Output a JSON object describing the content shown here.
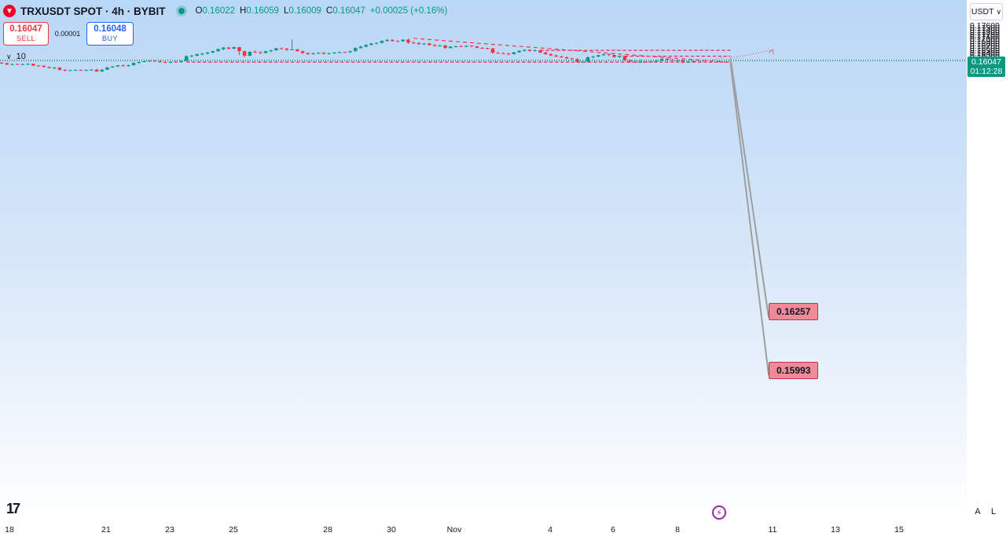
{
  "header": {
    "logo_icon": "tron-logo-icon",
    "symbol_title": "TRXUSDT SPOT · 4h · BYBIT",
    "ohlc": [
      {
        "key": "O",
        "value": "0.16022"
      },
      {
        "key": "H",
        "value": "0.16059"
      },
      {
        "key": "L",
        "value": "0.16009"
      },
      {
        "key": "C",
        "value": "0.16047"
      },
      {
        "key": "",
        "value": "+0.00025 (+0.16%)"
      }
    ]
  },
  "trade": {
    "sell_price": "0.16047",
    "sell_label": "SELL",
    "spread": "0.00001",
    "buy_price": "0.16048",
    "buy_label": "BUY"
  },
  "indicator": {
    "count": "10"
  },
  "price_axis": {
    "currency": "USDT",
    "ticks": [
      "0.17600",
      "0.17500",
      "0.17400",
      "0.17300",
      "0.17200",
      "0.17100",
      "0.17000",
      "0.16900",
      "0.16800",
      "0.16700",
      "0.16600",
      "0.16500",
      "0.16400",
      "0.16300",
      "0.16200",
      "0.16100",
      "0.16000",
      "0.15900",
      "0.15800",
      "0.15700",
      "0.15600",
      "0.15500"
    ],
    "last_price": "0.16047",
    "countdown": "01:12:28"
  },
  "time_axis": {
    "labels": [
      "18",
      "21",
      "23",
      "25",
      "28",
      "30",
      "Nov",
      "4",
      "6",
      "8",
      "11",
      "13",
      "15"
    ]
  },
  "buttons": {
    "auto": "A",
    "log": "L"
  },
  "annotations": {
    "callout_upper": "0.16257",
    "callout_lower": "0.15993"
  },
  "colors": {
    "up": "#089981",
    "down": "#f23645",
    "zone": "#f6b3c6",
    "trendline": "#f23645",
    "bg_top": "#b9d7f6",
    "bg_bottom": "#ffffff"
  },
  "chart_data": {
    "type": "candlestick",
    "symbol": "TRXUSDT",
    "interval": "4h",
    "ylim": [
      0.155,
      0.1765
    ],
    "candles": [
      [
        0.1597,
        0.16,
        0.1592,
        0.1595
      ],
      [
        0.1595,
        0.1597,
        0.1586,
        0.1589
      ],
      [
        0.1589,
        0.1593,
        0.1585,
        0.1591
      ],
      [
        0.1591,
        0.1594,
        0.1587,
        0.1589
      ],
      [
        0.1589,
        0.1593,
        0.1586,
        0.1591
      ],
      [
        0.1591,
        0.1594,
        0.1587,
        0.1592
      ],
      [
        0.1592,
        0.1593,
        0.1582,
        0.1584
      ],
      [
        0.1584,
        0.1587,
        0.1579,
        0.1583
      ],
      [
        0.1583,
        0.1586,
        0.1575,
        0.1578
      ],
      [
        0.1578,
        0.158,
        0.157,
        0.1574
      ],
      [
        0.1574,
        0.1578,
        0.1568,
        0.1575
      ],
      [
        0.1575,
        0.1577,
        0.1562,
        0.1565
      ],
      [
        0.1565,
        0.1569,
        0.1559,
        0.1562
      ],
      [
        0.1562,
        0.1566,
        0.156,
        0.1564
      ],
      [
        0.1564,
        0.1567,
        0.1561,
        0.1565
      ],
      [
        0.1565,
        0.1568,
        0.1561,
        0.1563
      ],
      [
        0.1563,
        0.1567,
        0.156,
        0.1565
      ],
      [
        0.1565,
        0.1569,
        0.1562,
        0.1566
      ],
      [
        0.1566,
        0.157,
        0.1556,
        0.1558
      ],
      [
        0.1558,
        0.1568,
        0.1557,
        0.1566
      ],
      [
        0.1566,
        0.1578,
        0.1565,
        0.1576
      ],
      [
        0.1576,
        0.1582,
        0.1574,
        0.158
      ],
      [
        0.158,
        0.1587,
        0.1578,
        0.1585
      ],
      [
        0.1585,
        0.159,
        0.158,
        0.1583
      ],
      [
        0.1583,
        0.1588,
        0.1578,
        0.1586
      ],
      [
        0.1586,
        0.1598,
        0.1584,
        0.1596
      ],
      [
        0.1596,
        0.1603,
        0.1592,
        0.16
      ],
      [
        0.16,
        0.1606,
        0.1598,
        0.1604
      ],
      [
        0.1604,
        0.1608,
        0.16,
        0.1606
      ],
      [
        0.1606,
        0.1609,
        0.1601,
        0.1603
      ],
      [
        0.1603,
        0.1607,
        0.1596,
        0.16
      ],
      [
        0.16,
        0.1604,
        0.1595,
        0.1597
      ],
      [
        0.1597,
        0.1602,
        0.1594,
        0.1601
      ],
      [
        0.1601,
        0.1606,
        0.1598,
        0.1599
      ],
      [
        0.1599,
        0.1606,
        0.1597,
        0.1605
      ],
      [
        0.1605,
        0.1629,
        0.1603,
        0.1626
      ],
      [
        0.1626,
        0.1632,
        0.162,
        0.1628
      ],
      [
        0.1628,
        0.1637,
        0.1624,
        0.1635
      ],
      [
        0.1635,
        0.1641,
        0.163,
        0.1637
      ],
      [
        0.1637,
        0.1645,
        0.1633,
        0.1642
      ],
      [
        0.1642,
        0.1651,
        0.1638,
        0.1648
      ],
      [
        0.1648,
        0.166,
        0.1645,
        0.1657
      ],
      [
        0.1657,
        0.1666,
        0.1652,
        0.1664
      ],
      [
        0.1664,
        0.1668,
        0.1655,
        0.1659
      ],
      [
        0.1659,
        0.1669,
        0.1656,
        0.1666
      ],
      [
        0.1666,
        0.1667,
        0.163,
        0.1648
      ],
      [
        0.1648,
        0.165,
        0.162,
        0.1628
      ],
      [
        0.1628,
        0.1648,
        0.1625,
        0.1645
      ],
      [
        0.1645,
        0.1652,
        0.164,
        0.1643
      ],
      [
        0.1643,
        0.1648,
        0.1635,
        0.164
      ],
      [
        0.164,
        0.165,
        0.1638,
        0.1648
      ],
      [
        0.1648,
        0.1654,
        0.1644,
        0.1652
      ],
      [
        0.1652,
        0.1663,
        0.165,
        0.1661
      ],
      [
        0.1661,
        0.1664,
        0.1655,
        0.1659
      ],
      [
        0.1659,
        0.1663,
        0.165,
        0.1654
      ],
      [
        0.1654,
        0.17,
        0.1652,
        0.1656
      ],
      [
        0.1656,
        0.1659,
        0.1645,
        0.1648
      ],
      [
        0.1648,
        0.165,
        0.1635,
        0.164
      ],
      [
        0.164,
        0.1643,
        0.1631,
        0.1635
      ],
      [
        0.1635,
        0.1641,
        0.1632,
        0.1639
      ],
      [
        0.1639,
        0.1643,
        0.1636,
        0.1641
      ],
      [
        0.1641,
        0.1643,
        0.1634,
        0.1636
      ],
      [
        0.1636,
        0.1641,
        0.1633,
        0.1639
      ],
      [
        0.1639,
        0.1644,
        0.1636,
        0.1642
      ],
      [
        0.1642,
        0.1646,
        0.1638,
        0.1644
      ],
      [
        0.1644,
        0.1646,
        0.164,
        0.1643
      ],
      [
        0.1643,
        0.165,
        0.164,
        0.1648
      ],
      [
        0.1648,
        0.1665,
        0.1646,
        0.1662
      ],
      [
        0.1662,
        0.1672,
        0.1658,
        0.1668
      ],
      [
        0.1668,
        0.1678,
        0.1665,
        0.1676
      ],
      [
        0.1676,
        0.1685,
        0.1673,
        0.1682
      ],
      [
        0.1682,
        0.1688,
        0.1678,
        0.1685
      ],
      [
        0.1685,
        0.1696,
        0.1682,
        0.1694
      ],
      [
        0.1694,
        0.1702,
        0.169,
        0.1698
      ],
      [
        0.1698,
        0.1701,
        0.169,
        0.1693
      ],
      [
        0.1693,
        0.1697,
        0.1689,
        0.1692
      ],
      [
        0.1692,
        0.1701,
        0.169,
        0.1699
      ],
      [
        0.1699,
        0.1705,
        0.168,
        0.1686
      ],
      [
        0.1686,
        0.1692,
        0.168,
        0.1684
      ],
      [
        0.1684,
        0.1688,
        0.1676,
        0.1679
      ],
      [
        0.1679,
        0.1684,
        0.1675,
        0.1682
      ],
      [
        0.1682,
        0.1686,
        0.1672,
        0.1675
      ],
      [
        0.1675,
        0.168,
        0.1669,
        0.1671
      ],
      [
        0.1671,
        0.1677,
        0.1668,
        0.1673
      ],
      [
        0.1673,
        0.1677,
        0.1659,
        0.1662
      ],
      [
        0.1662,
        0.167,
        0.1659,
        0.1668
      ],
      [
        0.1668,
        0.1673,
        0.1664,
        0.167
      ],
      [
        0.167,
        0.1675,
        0.1666,
        0.1668
      ],
      [
        0.1668,
        0.1674,
        0.1665,
        0.1672
      ],
      [
        0.1672,
        0.1675,
        0.1666,
        0.1669
      ],
      [
        0.1669,
        0.1672,
        0.166,
        0.1663
      ],
      [
        0.1663,
        0.1666,
        0.1658,
        0.1662
      ],
      [
        0.1662,
        0.1664,
        0.1655,
        0.166
      ],
      [
        0.166,
        0.1662,
        0.1636,
        0.1641
      ],
      [
        0.1641,
        0.1645,
        0.1637,
        0.1639
      ],
      [
        0.1639,
        0.1643,
        0.1635,
        0.1637
      ],
      [
        0.1637,
        0.1641,
        0.163,
        0.1635
      ],
      [
        0.1635,
        0.1645,
        0.1633,
        0.1643
      ],
      [
        0.1643,
        0.1652,
        0.1641,
        0.165
      ],
      [
        0.165,
        0.1656,
        0.1646,
        0.1654
      ],
      [
        0.1654,
        0.1657,
        0.1646,
        0.1649
      ],
      [
        0.1649,
        0.1656,
        0.1646,
        0.1652
      ],
      [
        0.1652,
        0.1654,
        0.1639,
        0.1642
      ],
      [
        0.1642,
        0.1646,
        0.1632,
        0.1635
      ],
      [
        0.1635,
        0.1639,
        0.1626,
        0.1629
      ],
      [
        0.1629,
        0.1633,
        0.1621,
        0.1624
      ],
      [
        0.1624,
        0.1629,
        0.1618,
        0.1621
      ],
      [
        0.1621,
        0.1626,
        0.1612,
        0.1616
      ],
      [
        0.1616,
        0.1619,
        0.161,
        0.1613
      ],
      [
        0.1613,
        0.1617,
        0.1597,
        0.16
      ],
      [
        0.16,
        0.1604,
        0.1596,
        0.1602
      ],
      [
        0.1602,
        0.1625,
        0.1598,
        0.1621
      ],
      [
        0.1621,
        0.1627,
        0.1616,
        0.1624
      ],
      [
        0.1624,
        0.1633,
        0.1621,
        0.163
      ],
      [
        0.163,
        0.1641,
        0.1627,
        0.1634
      ],
      [
        0.1634,
        0.1638,
        0.1627,
        0.1631
      ],
      [
        0.1631,
        0.1634,
        0.1618,
        0.1622
      ],
      [
        0.1622,
        0.163,
        0.1619,
        0.1627
      ],
      [
        0.1627,
        0.1629,
        0.1604,
        0.1608
      ],
      [
        0.1608,
        0.1612,
        0.1598,
        0.1602
      ],
      [
        0.1602,
        0.1606,
        0.1595,
        0.1599
      ],
      [
        0.1599,
        0.1611,
        0.1597,
        0.1601
      ],
      [
        0.1601,
        0.1605,
        0.1597,
        0.16
      ],
      [
        0.16,
        0.1609,
        0.1598,
        0.1603
      ],
      [
        0.1603,
        0.161,
        0.16,
        0.1606
      ],
      [
        0.1606,
        0.1617,
        0.1604,
        0.1614
      ],
      [
        0.1614,
        0.162,
        0.1606,
        0.161
      ],
      [
        0.161,
        0.1616,
        0.1603,
        0.1607
      ],
      [
        0.1607,
        0.161,
        0.1603,
        0.1608
      ],
      [
        0.1608,
        0.161,
        0.1595,
        0.1598
      ],
      [
        0.1598,
        0.1605,
        0.1596,
        0.1602
      ],
      [
        0.1602,
        0.1606,
        0.1601,
        0.1605
      ]
    ],
    "trendline": [
      [
        0.1705,
        78
      ],
      [
        0.1598,
        138
      ]
    ],
    "zones": [
      {
        "from": 0.1597,
        "to": 0.1602,
        "x_start": 35,
        "x_end": 138
      },
      {
        "from": 0.16235,
        "to": 0.1628,
        "x_start": 118,
        "x_end": 138
      },
      {
        "from": 0.16495,
        "to": 0.1654,
        "x_start": 102,
        "x_end": 138
      }
    ],
    "projection": [
      [
        0.1602,
        132
      ],
      [
        0.1616,
        136
      ],
      [
        0.1627,
        137.5
      ],
      [
        0.162,
        139
      ],
      [
        0.1655,
        146
      ]
    ]
  }
}
